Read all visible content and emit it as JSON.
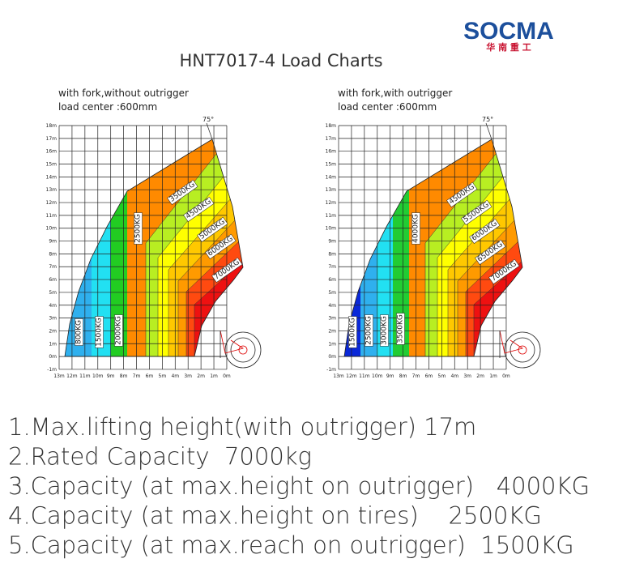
{
  "logo": {
    "name": "SOCMA",
    "subname": "华 南 重 工"
  },
  "title": "HNT7017-4 Load Charts",
  "charts": [
    {
      "subtitle": [
        "with fork,without outrigger",
        "load center :600mm"
      ],
      "angle_label": "75°",
      "y_labels": [
        "18m",
        "17m",
        "16m",
        "15m",
        "14m",
        "13m",
        "12m",
        "11m",
        "10m",
        "9m",
        "8m",
        "7m",
        "6m",
        "5m",
        "4m",
        "3m",
        "2m",
        "1m",
        "0m",
        "-1m"
      ],
      "x_labels": [
        "13m",
        "12m",
        "11m",
        "10m",
        "9m",
        "8m",
        "7m",
        "6m",
        "5m",
        "4m",
        "3m",
        "2m",
        "1m",
        "0m"
      ],
      "zones": [
        "800KG",
        "1500KG",
        "2000KG",
        "2500KG",
        "3500KG",
        "4500KG",
        "5000KG",
        "6000KG",
        "7000KG"
      ]
    },
    {
      "subtitle": [
        "with fork,with outrigger",
        "load center :600mm"
      ],
      "angle_label": "75°",
      "y_labels": [
        "18m",
        "17m",
        "16m",
        "15m",
        "14m",
        "13m",
        "12m",
        "11m",
        "10m",
        "9m",
        "8m",
        "7m",
        "6m",
        "5m",
        "4m",
        "3m",
        "2m",
        "1m",
        "0m",
        "-1m"
      ],
      "x_labels": [
        "13m",
        "12m",
        "11m",
        "10m",
        "9m",
        "8m",
        "7m",
        "6m",
        "5m",
        "4m",
        "3m",
        "2m",
        "1m",
        "0m"
      ],
      "zones": [
        "1500KG",
        "2500KG",
        "3000KG",
        "3500KG",
        "4000KG",
        "4500KG",
        "5500KG",
        "6000KG",
        "6500KG",
        "7000KG"
      ]
    }
  ],
  "notes": [
    "1.Max.lifting height(with outrigger) 17m",
    "2.Rated Capacity  7000kg",
    "3.Capacity (at max.height on outrigger)   4000KG",
    "4.Capacity (at max.height on tires)    2500KG",
    "5.Capacity (at max.reach on outrigger)  1500KG"
  ]
}
